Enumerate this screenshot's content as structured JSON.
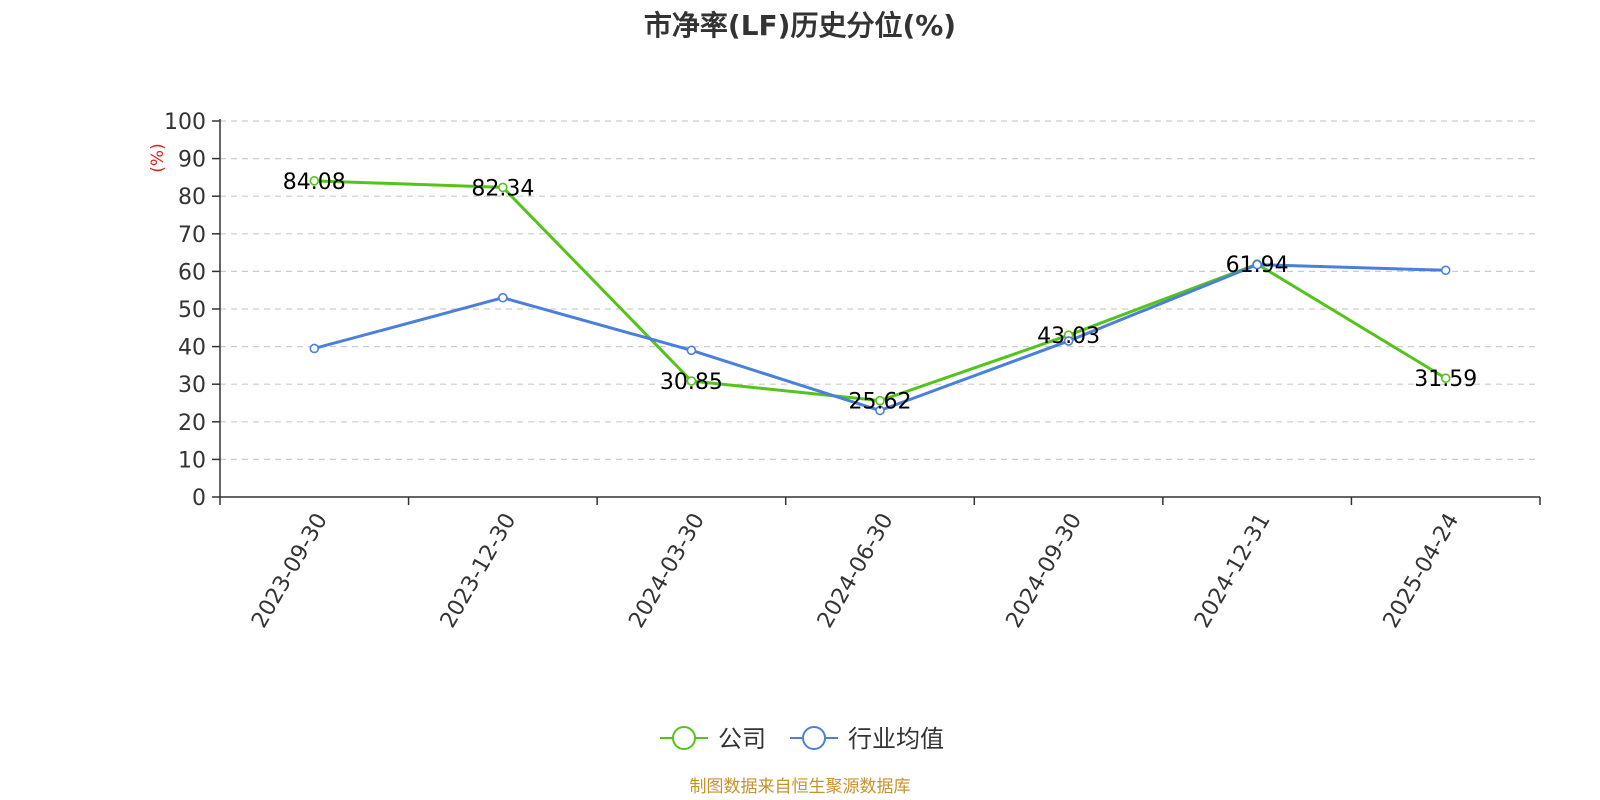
{
  "chart_data": {
    "type": "line",
    "title": "市净率(LF)历史分位(%)",
    "ylabel": "(%)",
    "xlabel": "",
    "ylim": [
      0,
      100
    ],
    "yticks": [
      0,
      10,
      20,
      30,
      40,
      50,
      60,
      70,
      80,
      90,
      100
    ],
    "categories": [
      "2023-09-30",
      "2023-12-30",
      "2024-03-30",
      "2024-06-30",
      "2024-09-30",
      "2024-12-31",
      "2025-04-24"
    ],
    "grid": "horizontal dashed",
    "legend_position": "bottom-center",
    "series": [
      {
        "name": "公司",
        "color": "#52c41a",
        "values": [
          84.08,
          82.34,
          30.85,
          25.62,
          43.03,
          61.94,
          31.59
        ],
        "labels": [
          "84.08",
          "82.34",
          "30.85",
          "25.62",
          "43.03",
          "61.94",
          "31.59"
        ]
      },
      {
        "name": "行业均值",
        "color": "#4a7fdb",
        "values": [
          39.5,
          53.0,
          39.0,
          23.0,
          41.5,
          61.8,
          60.3
        ]
      }
    ]
  },
  "source_text": "制图数据来自恒生聚源数据库"
}
